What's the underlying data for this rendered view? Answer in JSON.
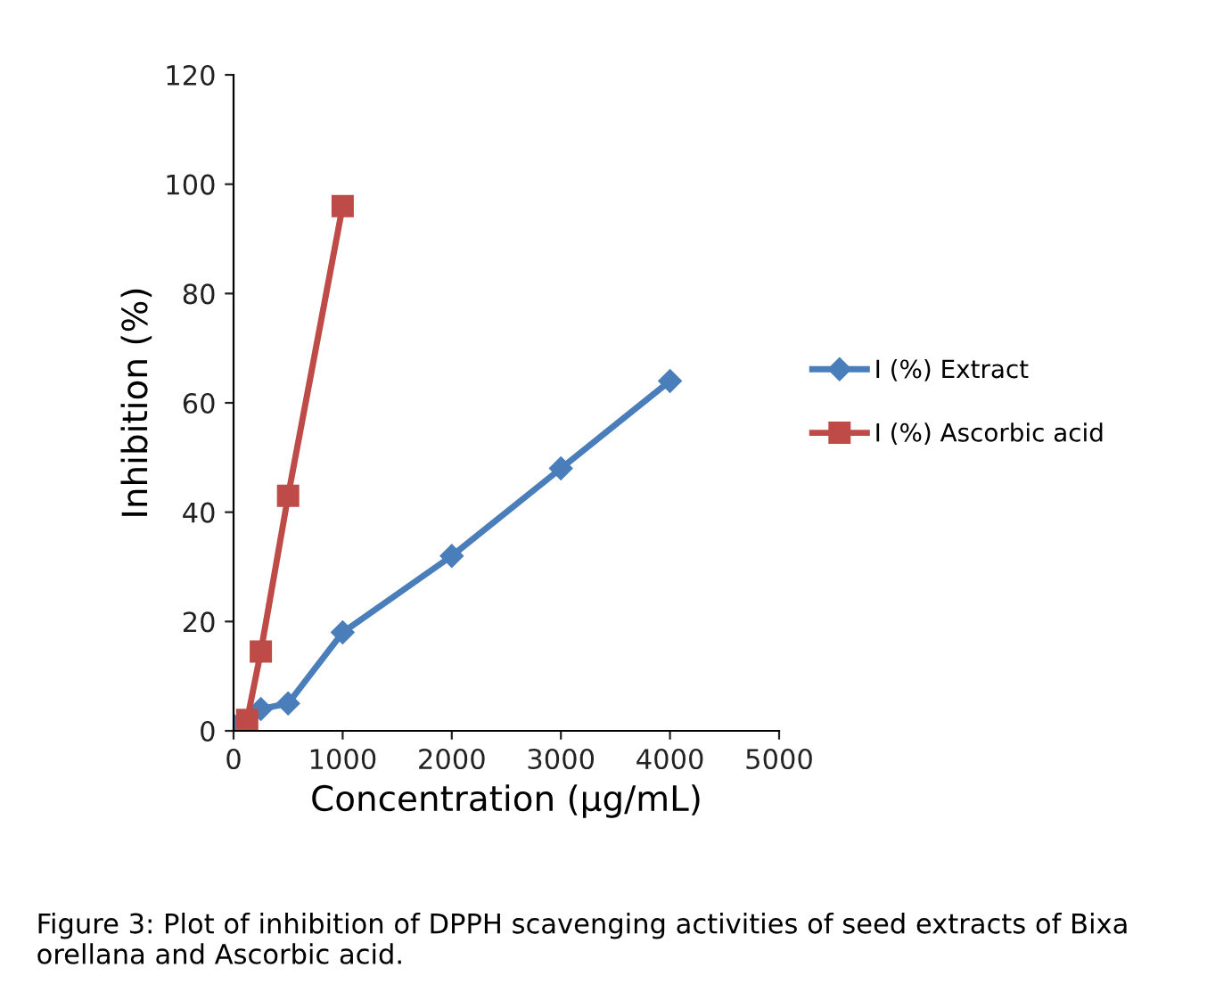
{
  "chart_data": {
    "type": "line",
    "xlabel": "Concentration (µg/mL)",
    "ylabel": "Inhibition (%)",
    "series": [
      {
        "name": "I (%) Extract",
        "color": "#4a7ebb",
        "marker": "diamond",
        "x": [
          0,
          125,
          250,
          500,
          1000,
          2000,
          3000,
          4000
        ],
        "values": [
          1,
          null,
          4,
          5,
          18,
          32,
          48,
          64
        ]
      },
      {
        "name": "I (%) Ascorbic acid",
        "color": "#be4b48",
        "marker": "square",
        "x": [
          125,
          250,
          500,
          1000
        ],
        "values": [
          2,
          14.5,
          43,
          96
        ]
      }
    ],
    "xlim": [
      0,
      5000
    ],
    "xticks": [
      0,
      1000,
      2000,
      3000,
      4000,
      5000
    ],
    "ylim": [
      0,
      120
    ],
    "yticks": [
      0,
      20,
      40,
      60,
      80,
      100,
      120
    ],
    "grid": false,
    "legend": "right",
    "line_style": "solid",
    "annotations": [
      "Figure 3: Plot of inhibition of DPPH scavenging activities of seed extracts of Bixa orellana and Ascorbic acid."
    ]
  }
}
